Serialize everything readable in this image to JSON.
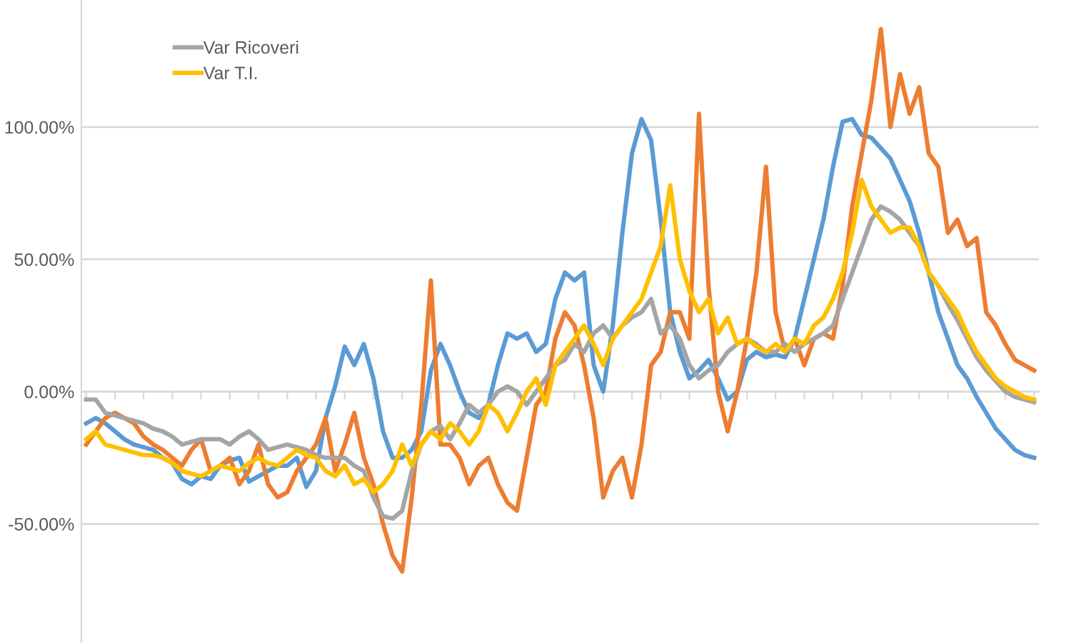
{
  "chart_data": {
    "type": "line",
    "categories": [
      null,
      null,
      null,
      null,
      null,
      null,
      null,
      null,
      null,
      null,
      null,
      null,
      null,
      null,
      null,
      null,
      null,
      null,
      null,
      null,
      null,
      null,
      null,
      null,
      null,
      null,
      null,
      null,
      null,
      null,
      null,
      null,
      null,
      null,
      null,
      null,
      null,
      null,
      null,
      null,
      null,
      null,
      null,
      null,
      null,
      null,
      null,
      null,
      null,
      null,
      null,
      null,
      null,
      null,
      null,
      null,
      null,
      null,
      null,
      null,
      null,
      null,
      null,
      null,
      null,
      null,
      null,
      null,
      null,
      null,
      null,
      null,
      null,
      null,
      null,
      null,
      null,
      null,
      null,
      null,
      null,
      null,
      null,
      null,
      null,
      null,
      null,
      null,
      null,
      null,
      null,
      null,
      null,
      null,
      null,
      null,
      null,
      null,
      null,
      null
    ],
    "series": [
      {
        "color": "#5b9bd5",
        "values": [
          -12,
          -10,
          -12,
          -15,
          -18,
          -20,
          -21,
          -22,
          -25,
          -27,
          -33,
          -35,
          -32,
          -33,
          -28,
          -26,
          -25,
          -34,
          -32,
          -30,
          -28,
          -28,
          -25,
          -36,
          -30,
          -10,
          2,
          17,
          10,
          18,
          5,
          -15,
          -25,
          -25,
          -22,
          -15,
          8,
          18,
          10,
          0,
          -8,
          -10,
          -5,
          10,
          22,
          20,
          22,
          15,
          18,
          35,
          45,
          42,
          45,
          10,
          0,
          25,
          60,
          90,
          103,
          95,
          65,
          30,
          15,
          5,
          8,
          12,
          5,
          -3,
          0,
          12,
          15,
          13,
          14,
          13,
          20,
          35,
          50,
          65,
          85,
          102,
          103,
          97,
          96,
          92,
          88,
          80,
          72,
          60,
          45,
          30,
          20,
          10,
          5,
          -2,
          -8,
          -14,
          -18,
          -22,
          -24,
          -25
        ]
      },
      {
        "color": "#ed7d31",
        "values": [
          -20,
          -15,
          -10,
          -8,
          -10,
          -12,
          -17,
          -20,
          -22,
          -25,
          -28,
          -22,
          -18,
          -30,
          -28,
          -25,
          -35,
          -30,
          -20,
          -35,
          -40,
          -38,
          -30,
          -25,
          -20,
          -10,
          -30,
          -20,
          -8,
          -25,
          -35,
          -50,
          -62,
          -68,
          -40,
          -5,
          42,
          -20,
          -20,
          -25,
          -35,
          -28,
          -25,
          -35,
          -42,
          -45,
          -25,
          -5,
          0,
          20,
          30,
          25,
          10,
          -10,
          -40,
          -30,
          -25,
          -40,
          -20,
          10,
          15,
          30,
          30,
          20,
          105,
          40,
          0,
          -15,
          0,
          20,
          45,
          85,
          30,
          15,
          20,
          10,
          20,
          22,
          20,
          40,
          70,
          90,
          110,
          137,
          100,
          120,
          105,
          115,
          90,
          85,
          60,
          65,
          55,
          58,
          30,
          25,
          18,
          12,
          10,
          8
        ]
      },
      {
        "name": "Var Ricoveri",
        "color": "#a5a5a5",
        "values": [
          -3,
          -3,
          -8,
          -9,
          -10,
          -11,
          -12,
          -14,
          -15,
          -17,
          -20,
          -19,
          -18,
          -18,
          -18,
          -20,
          -17,
          -15,
          -18,
          -22,
          -21,
          -20,
          -21,
          -22,
          -24,
          -25,
          -25,
          -25,
          -28,
          -30,
          -40,
          -47,
          -48,
          -45,
          -30,
          -20,
          -15,
          -13,
          -18,
          -12,
          -5,
          -8,
          -5,
          0,
          2,
          0,
          -5,
          0,
          5,
          10,
          12,
          18,
          15,
          22,
          25,
          20,
          25,
          28,
          30,
          35,
          22,
          25,
          20,
          10,
          5,
          8,
          10,
          15,
          18,
          20,
          18,
          15,
          15,
          18,
          15,
          18,
          20,
          22,
          25,
          35,
          45,
          55,
          65,
          70,
          68,
          65,
          60,
          55,
          45,
          40,
          33,
          27,
          20,
          13,
          8,
          4,
          0,
          -2,
          -3,
          -4
        ]
      },
      {
        "name": "Var T.I.",
        "color": "#ffc000",
        "values": [
          -18,
          -15,
          -20,
          -21,
          -22,
          -23,
          -24,
          -24,
          -25,
          -27,
          -30,
          -31,
          -32,
          -30,
          -28,
          -29,
          -30,
          -27,
          -25,
          -27,
          -28,
          -25,
          -22,
          -24,
          -25,
          -30,
          -32,
          -28,
          -35,
          -33,
          -38,
          -35,
          -30,
          -20,
          -28,
          -20,
          -15,
          -18,
          -12,
          -15,
          -20,
          -15,
          -5,
          -8,
          -15,
          -8,
          0,
          5,
          -5,
          10,
          15,
          20,
          25,
          18,
          10,
          20,
          25,
          30,
          35,
          45,
          55,
          78,
          50,
          38,
          30,
          35,
          22,
          28,
          18,
          20,
          17,
          15,
          18,
          15,
          20,
          18,
          25,
          28,
          35,
          45,
          60,
          80,
          70,
          65,
          60,
          62,
          62,
          55,
          45,
          40,
          35,
          30,
          22,
          15,
          10,
          5,
          2,
          0,
          -2,
          -3
        ]
      }
    ],
    "ylim": [
      -95,
      148
    ],
    "yticks": [
      {
        "value": -50,
        "label": "-50.00%"
      },
      {
        "value": 0,
        "label": "0.00%"
      },
      {
        "value": 50,
        "label": "50.00%"
      },
      {
        "value": 100,
        "label": "100.00%"
      }
    ],
    "grid": "y",
    "legend": "top left",
    "tick_labels": "y",
    "marker": "none",
    "line_style": "solid"
  }
}
